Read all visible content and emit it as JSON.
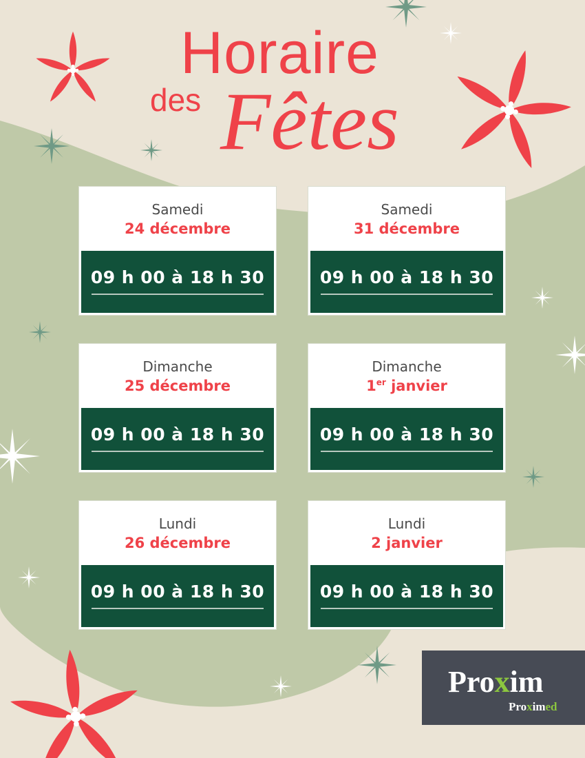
{
  "title": {
    "line1": "Horaire",
    "line2": "des",
    "line3": "Fêtes"
  },
  "colors": {
    "background": "#ebe4d6",
    "blob": "#bfc9a8",
    "card_green": "#11513a",
    "accent_red": "#ef4249",
    "logo_bg": "#474b55",
    "logo_green": "#8cc63f"
  },
  "schedule": [
    {
      "day": "Samedi",
      "date": "24 décembre",
      "hours": "09 h 00 à 18 h 30"
    },
    {
      "day": "Samedi",
      "date": "31 décembre",
      "hours": "09 h 00 à 18 h 30"
    },
    {
      "day": "Dimanche",
      "date": "25 décembre",
      "hours": "09 h 00 à 18 h 30"
    },
    {
      "day": "Dimanche",
      "date_num": "1",
      "date_sup": "er",
      "date_rest": " janvier",
      "hours": "09 h 00 à 18 h 30"
    },
    {
      "day": "Lundi",
      "date": "26 décembre",
      "hours": "09 h 00 à 18 h 30"
    },
    {
      "day": "Lundi",
      "date": "2 janvier",
      "hours": "09 h 00 à 18 h 30"
    }
  ],
  "logo": {
    "main_a": "Pro",
    "main_x": "x",
    "main_b": "im",
    "sub_a": "Pro",
    "sub_x": "x",
    "sub_b": "im",
    "sub_c": "ed"
  },
  "icons": [
    "poinsettia-flower-icon",
    "snowflake-icon",
    "sparkle-icon"
  ]
}
